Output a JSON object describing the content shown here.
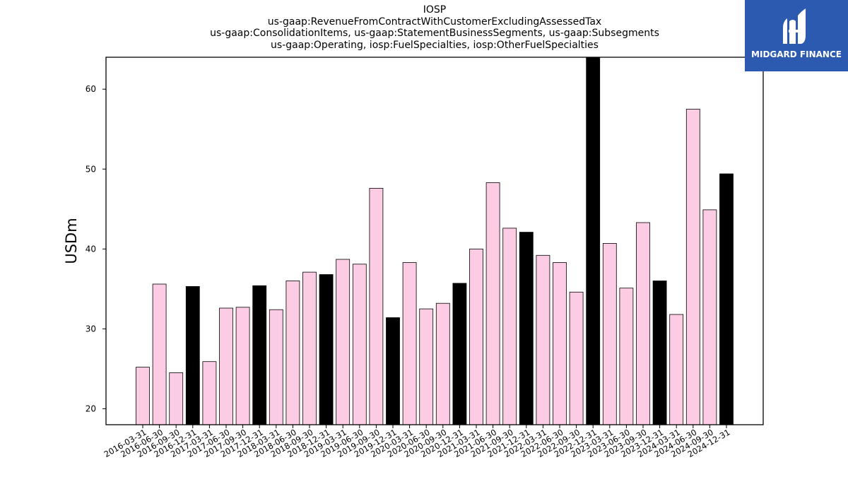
{
  "chart_data": {
    "type": "bar",
    "title_lines": [
      "IOSP",
      "us-gaap:RevenueFromContractWithCustomerExcludingAssessedTax",
      "us-gaap:ConsolidationItems, us-gaap:StatementBusinessSegments, us-gaap:Subsegments",
      "us-gaap:Operating, iosp:FuelSpecialties, iosp:OtherFuelSpecialties"
    ],
    "ylabel": "USDm",
    "xlabel": "",
    "ylim": [
      18,
      64
    ],
    "yticks": [
      20,
      30,
      40,
      50,
      60
    ],
    "grid": false,
    "colors": {
      "quarter": "#fccbe4",
      "year_end": "#000000",
      "edge": "#000000"
    },
    "categories": [
      "2016-03-31",
      "2016-06-30",
      "2016-09-30",
      "2016-12-31",
      "2017-03-31",
      "2017-06-30",
      "2017-09-30",
      "2017-12-31",
      "2018-03-31",
      "2018-06-30",
      "2018-09-30",
      "2018-12-31",
      "2019-03-31",
      "2019-06-30",
      "2019-09-30",
      "2019-12-31",
      "2020-03-31",
      "2020-06-30",
      "2020-09-30",
      "2020-12-31",
      "2021-03-31",
      "2021-06-30",
      "2021-09-30",
      "2021-12-31",
      "2022-03-31",
      "2022-06-30",
      "2022-09-30",
      "2022-12-31",
      "2023-03-31",
      "2023-06-30",
      "2023-09-30",
      "2023-12-31",
      "2024-03-31",
      "2024-06-30",
      "2024-09-30",
      "2024-12-31"
    ],
    "values": [
      25.2,
      35.6,
      24.5,
      35.3,
      25.9,
      32.6,
      32.7,
      35.4,
      32.4,
      36.0,
      37.1,
      36.8,
      38.7,
      38.1,
      47.6,
      31.4,
      38.3,
      32.5,
      33.2,
      35.7,
      40.0,
      48.3,
      42.6,
      42.1,
      39.2,
      38.3,
      34.6,
      64.5,
      40.7,
      35.1,
      43.3,
      36.0,
      31.8,
      57.5,
      44.9,
      49.4
    ]
  },
  "branding": {
    "name": "MIDGARD FINANCE",
    "background": "#2c5ab0",
    "icon": "midgard-logo-icon"
  }
}
